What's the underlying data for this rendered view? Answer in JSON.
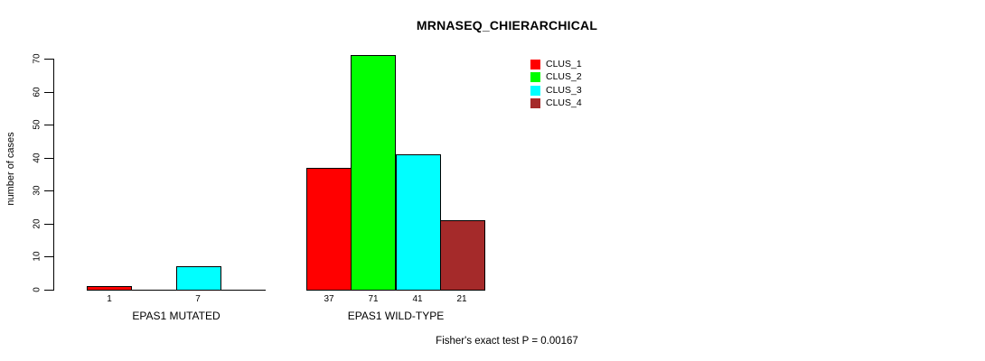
{
  "chart_data": {
    "type": "bar",
    "title": "MRNASEQ_CHIERARCHICAL",
    "ylabel": "number of cases",
    "xlabel": "",
    "ylim": [
      0,
      70
    ],
    "yticks": [
      0,
      10,
      20,
      30,
      40,
      50,
      60,
      70
    ],
    "grid": false,
    "categories": [
      "EPAS1 MUTATED",
      "EPAS1 WILD-TYPE"
    ],
    "series": [
      {
        "name": "CLUS_1",
        "color": "#ff0000",
        "values": [
          1,
          37
        ]
      },
      {
        "name": "CLUS_2",
        "color": "#00ff00",
        "values": [
          0,
          71
        ]
      },
      {
        "name": "CLUS_3",
        "color": "#00ffff",
        "values": [
          7,
          41
        ]
      },
      {
        "name": "CLUS_4",
        "color": "#a52a2a",
        "values": [
          0,
          21
        ]
      }
    ],
    "bar_value_labels_shown_for_nonzero_only": true,
    "legend": {
      "position": "top-right"
    },
    "annotation": "Fisher's exact test P = 0.00167"
  }
}
